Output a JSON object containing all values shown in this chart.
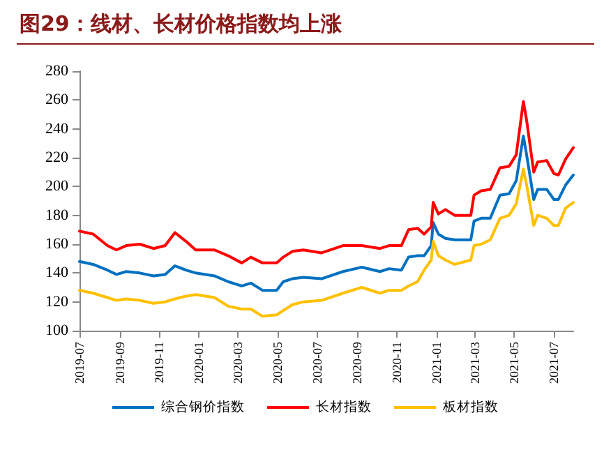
{
  "chart_data": {
    "type": "line",
    "title": "图29：线材、长材价格指数均上涨",
    "x": [
      "2019-07-01",
      "2019-07-22",
      "2019-08-13",
      "2019-08-27",
      "2019-09-11",
      "2019-10-02",
      "2019-10-23",
      "2019-11-10",
      "2019-11-25",
      "2019-12-12",
      "2019-12-27",
      "2020-01-25",
      "2020-02-15",
      "2020-03-07",
      "2020-03-21",
      "2020-04-08",
      "2020-04-30",
      "2020-05-10",
      "2020-05-24",
      "2020-06-10",
      "2020-07-08",
      "2020-08-10",
      "2020-09-08",
      "2020-10-06",
      "2020-10-20",
      "2020-11-08",
      "2020-11-19",
      "2020-12-03",
      "2020-12-13",
      "2020-12-24",
      "2020-12-27",
      "2021-01-04",
      "2021-01-15",
      "2021-01-29",
      "2021-02-23",
      "2021-02-28",
      "2021-03-11",
      "2021-03-25",
      "2021-04-09",
      "2021-04-23",
      "2021-05-04",
      "2021-05-15",
      "2021-05-20",
      "2021-05-31",
      "2021-06-06",
      "2021-06-20",
      "2021-07-01",
      "2021-07-08",
      "2021-07-19",
      "2021-07-31"
    ],
    "series": [
      {
        "name": "综合钢价指数",
        "color": "#0070c0",
        "values": [
          148,
          146,
          142,
          139,
          141,
          140,
          138,
          139,
          145,
          142,
          140,
          138,
          134,
          131,
          133,
          128,
          128,
          134,
          136,
          137,
          136,
          141,
          144,
          141,
          143,
          142,
          151,
          152,
          152,
          159,
          175,
          167,
          164,
          163,
          163,
          176,
          178,
          178,
          194,
          195,
          204,
          235,
          222,
          191,
          198,
          198,
          191,
          191,
          201,
          208
        ]
      },
      {
        "name": "长材指数",
        "color": "#ff0000",
        "values": [
          169,
          167,
          159,
          156,
          159,
          160,
          157,
          159,
          168,
          162,
          156,
          156,
          152,
          147,
          151,
          147,
          147,
          151,
          155,
          156,
          154,
          159,
          159,
          157,
          159,
          159,
          170,
          171,
          167,
          172,
          189,
          181,
          184,
          180,
          180,
          194,
          197,
          198,
          213,
          214,
          222,
          259,
          246,
          210,
          217,
          218,
          209,
          208,
          219,
          227
        ]
      },
      {
        "name": "板材指数",
        "color": "#ffc000",
        "values": [
          128,
          126,
          123,
          121,
          122,
          121,
          119,
          120,
          122,
          124,
          125,
          123,
          117,
          115,
          115,
          110,
          111,
          114,
          118,
          120,
          121,
          126,
          130,
          126,
          128,
          128,
          131,
          134,
          142,
          149,
          162,
          152,
          149,
          146,
          149,
          159,
          160,
          163,
          178,
          180,
          188,
          212,
          201,
          173,
          180,
          178,
          173,
          173,
          185,
          189
        ]
      }
    ],
    "xlim": [
      "2019-07-01",
      "2021-07-31"
    ],
    "xticks": [
      "2019-07",
      "2019-09",
      "2019-11",
      "2020-01",
      "2020-03",
      "2020-05",
      "2020-07",
      "2020-09",
      "2020-11",
      "2021-01",
      "2021-03",
      "2021-05",
      "2021-07"
    ],
    "ylim": [
      100,
      280
    ],
    "yticks": [
      100,
      120,
      140,
      160,
      180,
      200,
      220,
      240,
      260,
      280
    ],
    "grid": false,
    "legend": "bottom",
    "marker": "none",
    "line_style": "solid"
  }
}
